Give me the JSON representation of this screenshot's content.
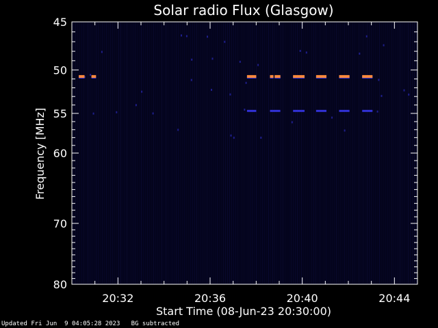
{
  "chart_data": {
    "type": "heatmap",
    "title": "Solar radio Flux (Glasgow)",
    "xlabel": "Start Time (08-Jun-23 20:30:00)",
    "ylabel": "Frequency [MHz]",
    "xlim_minutes": [
      0,
      15
    ],
    "ylim": [
      45,
      80
    ],
    "y_scale": "log",
    "x_ticks": [
      "20:32",
      "20:36",
      "20:40",
      "20:44"
    ],
    "x_tick_minutes": [
      2,
      6,
      10,
      14
    ],
    "y_ticks": [
      45,
      50,
      55,
      60,
      70,
      80
    ],
    "background_color": "#04041c",
    "strong_color": "#ff8a3c",
    "medium_color": "#3232d8",
    "weak_color": "#1e1e8a",
    "strong_bursts": [
      {
        "t_start": 0.3,
        "t_end": 0.55,
        "freq": 50.8
      },
      {
        "t_start": 0.85,
        "t_end": 1.05,
        "freq": 50.8
      },
      {
        "t_start": 7.6,
        "t_end": 8.0,
        "freq": 50.8
      },
      {
        "t_start": 8.6,
        "t_end": 8.75,
        "freq": 50.8
      },
      {
        "t_start": 8.8,
        "t_end": 9.05,
        "freq": 50.8
      },
      {
        "t_start": 9.6,
        "t_end": 10.1,
        "freq": 50.8
      },
      {
        "t_start": 10.6,
        "t_end": 11.05,
        "freq": 50.8
      },
      {
        "t_start": 11.6,
        "t_end": 12.05,
        "freq": 50.8
      },
      {
        "t_start": 12.6,
        "t_end": 13.05,
        "freq": 50.8
      }
    ],
    "medium_bursts": [
      {
        "t_start": 7.6,
        "t_end": 8.0,
        "freq": 54.7
      },
      {
        "t_start": 8.6,
        "t_end": 9.05,
        "freq": 54.7
      },
      {
        "t_start": 9.6,
        "t_end": 10.1,
        "freq": 54.7
      },
      {
        "t_start": 10.6,
        "t_end": 11.05,
        "freq": 54.7
      },
      {
        "t_start": 11.6,
        "t_end": 12.05,
        "freq": 54.7
      },
      {
        "t_start": 12.6,
        "t_end": 13.05,
        "freq": 54.7
      }
    ]
  },
  "footer": {
    "updated": "Updated Fri Jun  9 04:05:28 2023",
    "bg_note": "BG subtracted"
  }
}
